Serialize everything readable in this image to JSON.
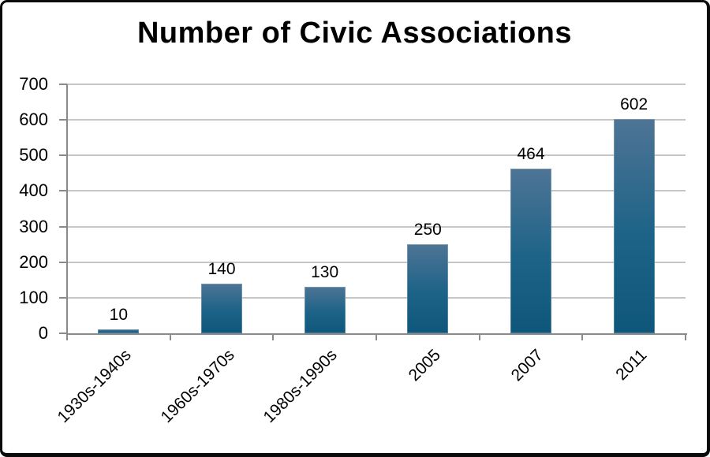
{
  "frame": {
    "background": "#ffffff",
    "border_color": "#0a0a0a"
  },
  "chart_data": {
    "type": "bar",
    "title": "Number of Civic Associations",
    "categories": [
      "1930s-1940s",
      "1960s-1970s",
      "1980s-1990s",
      "2005",
      "2007",
      "2011"
    ],
    "values": [
      10,
      140,
      130,
      250,
      464,
      602
    ],
    "data_labels": [
      "10",
      "140",
      "130",
      "250",
      "464",
      "602"
    ],
    "xlabel": "",
    "ylabel": "",
    "ylim": [
      0,
      700
    ],
    "ytick_interval": 100,
    "ytick_labels": [
      "0",
      "100",
      "200",
      "300",
      "400",
      "500",
      "600",
      "700"
    ],
    "grid": true,
    "legend_position": "none",
    "x_label_rotation_deg": -45,
    "colors": {
      "bar_gradient_top": "#4e7495",
      "bar_gradient_mid": "#1c6387",
      "bar_gradient_bottom": "#0e567a",
      "bar_border": "#7b9cb2",
      "gridline": "#c6c6c6",
      "axis": "#8a8a8a",
      "text": "#000000"
    }
  }
}
